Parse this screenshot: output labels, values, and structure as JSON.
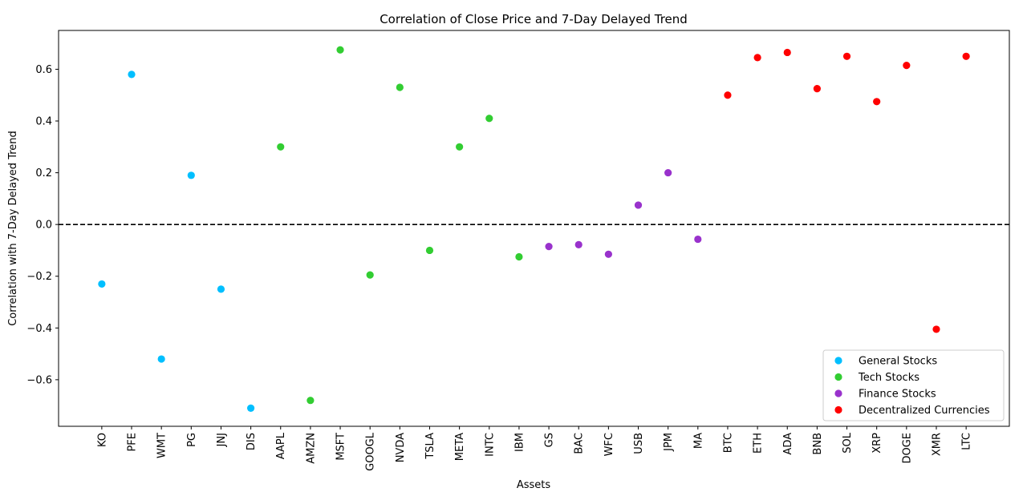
{
  "chart_data": {
    "type": "scatter",
    "title": "Correlation of Close Price and 7-Day Delayed Trend",
    "xlabel": "Assets",
    "ylabel": "Correlation with 7-Day Delayed Trend",
    "ylim": [
      -0.78,
      0.75
    ],
    "yticks": [
      -0.6,
      -0.4,
      -0.2,
      0.0,
      0.2,
      0.4,
      0.6
    ],
    "ytick_labels": [
      "−0.6",
      "−0.4",
      "−0.2",
      "0.0",
      "0.2",
      "0.4",
      "0.6"
    ],
    "categories": [
      "KO",
      "PFE",
      "WMT",
      "PG",
      "JNJ",
      "DIS",
      "AAPL",
      "AMZN",
      "MSFT",
      "GOOGL",
      "NVDA",
      "TSLA",
      "META",
      "INTC",
      "IBM",
      "GS",
      "BAC",
      "WFC",
      "USB",
      "JPM",
      "MA",
      "BTC",
      "ETH",
      "ADA",
      "BNB",
      "SOL",
      "XRP",
      "DOGE",
      "XMR",
      "LTC"
    ],
    "reference_line": {
      "y": 0.0,
      "style": "dashed",
      "color": "#000000"
    },
    "grid": false,
    "legend_position": "lower-right",
    "series": [
      {
        "name": "General Stocks",
        "color": "#00bfff",
        "points": [
          {
            "x": "KO",
            "y": -0.23
          },
          {
            "x": "PFE",
            "y": 0.58
          },
          {
            "x": "WMT",
            "y": -0.52
          },
          {
            "x": "PG",
            "y": 0.19
          },
          {
            "x": "JNJ",
            "y": -0.25
          },
          {
            "x": "DIS",
            "y": -0.71
          }
        ]
      },
      {
        "name": "Tech Stocks",
        "color": "#32cd32",
        "points": [
          {
            "x": "AAPL",
            "y": 0.3
          },
          {
            "x": "AMZN",
            "y": -0.68
          },
          {
            "x": "MSFT",
            "y": 0.675
          },
          {
            "x": "GOOGL",
            "y": -0.195
          },
          {
            "x": "NVDA",
            "y": 0.53
          },
          {
            "x": "TSLA",
            "y": -0.1
          },
          {
            "x": "META",
            "y": 0.3
          },
          {
            "x": "INTC",
            "y": 0.41
          },
          {
            "x": "IBM",
            "y": -0.125
          }
        ]
      },
      {
        "name": "Finance Stocks",
        "color": "#9932cc",
        "points": [
          {
            "x": "GS",
            "y": -0.085
          },
          {
            "x": "BAC",
            "y": -0.078
          },
          {
            "x": "WFC",
            "y": -0.115
          },
          {
            "x": "USB",
            "y": 0.075
          },
          {
            "x": "JPM",
            "y": 0.2
          },
          {
            "x": "MA",
            "y": -0.057
          }
        ]
      },
      {
        "name": "Decentralized Currencies",
        "color": "#ff0000",
        "points": [
          {
            "x": "BTC",
            "y": 0.5
          },
          {
            "x": "ETH",
            "y": 0.645
          },
          {
            "x": "ADA",
            "y": 0.665
          },
          {
            "x": "BNB",
            "y": 0.525
          },
          {
            "x": "SOL",
            "y": 0.65
          },
          {
            "x": "XRP",
            "y": 0.475
          },
          {
            "x": "DOGE",
            "y": 0.615
          },
          {
            "x": "XMR",
            "y": -0.405
          },
          {
            "x": "LTC",
            "y": 0.65
          }
        ]
      }
    ]
  }
}
